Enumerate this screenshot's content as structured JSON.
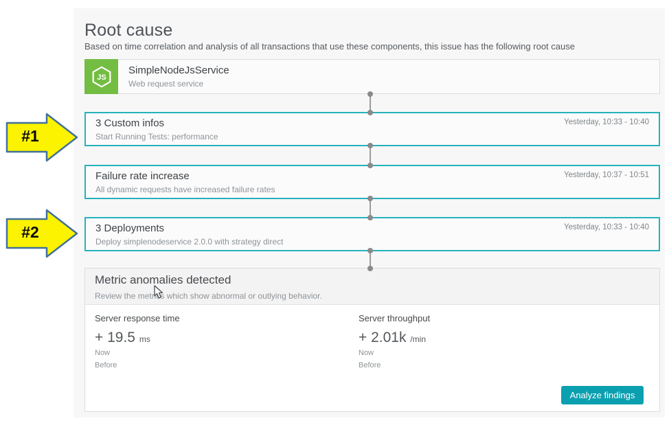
{
  "header": {
    "title": "Root cause",
    "subtitle": "Based on time correlation and analysis of all transactions that use these components, this issue has the following root cause"
  },
  "service_card": {
    "name": "SimpleNodeJsService",
    "type": "Web request service",
    "icon": "nodejs-hexagon-icon",
    "icon_text": "JS"
  },
  "events": [
    {
      "title": "3 Custom infos",
      "description": "Start Running Tests: performance",
      "time": "Yesterday, 10:33 - 10:40"
    },
    {
      "title": "Failure rate increase",
      "description": "All dynamic requests have increased failure rates",
      "time": "Yesterday, 10:37 - 10:51"
    },
    {
      "title": "3 Deployments",
      "description": "Deploy simplenodeservice 2.0.0 with strategy direct",
      "time": "Yesterday, 10:33 - 10:40"
    }
  ],
  "callouts": [
    {
      "label": "#1"
    },
    {
      "label": "#2"
    }
  ],
  "metrics_panel": {
    "title": "Metric anomalies detected",
    "subtitle": "Review the metrics which show abnormal or outlying behavior.",
    "metrics": [
      {
        "name": "Server response time",
        "change": "+ 19.5",
        "unit": "ms",
        "now_label": "Now",
        "before_label": "Before",
        "now_width_pct": 100,
        "before_width_pct": 75
      },
      {
        "name": "Server throughput",
        "change": "+ 2.01k",
        "unit": "/min",
        "now_label": "Now",
        "before_label": "Before",
        "now_width_pct": 100,
        "before_width_pct": 1
      }
    ],
    "button_label": "Analyze findings"
  },
  "colors": {
    "accent_teal_border": "#25b2bb",
    "button_teal": "#0aa0b0",
    "anomaly_red": "#dc172a",
    "baseline_gray": "#c9c9c9",
    "nodejs_green": "#74bd43",
    "callout_yellow": "#fbf300",
    "callout_border_blue": "#41719c"
  }
}
